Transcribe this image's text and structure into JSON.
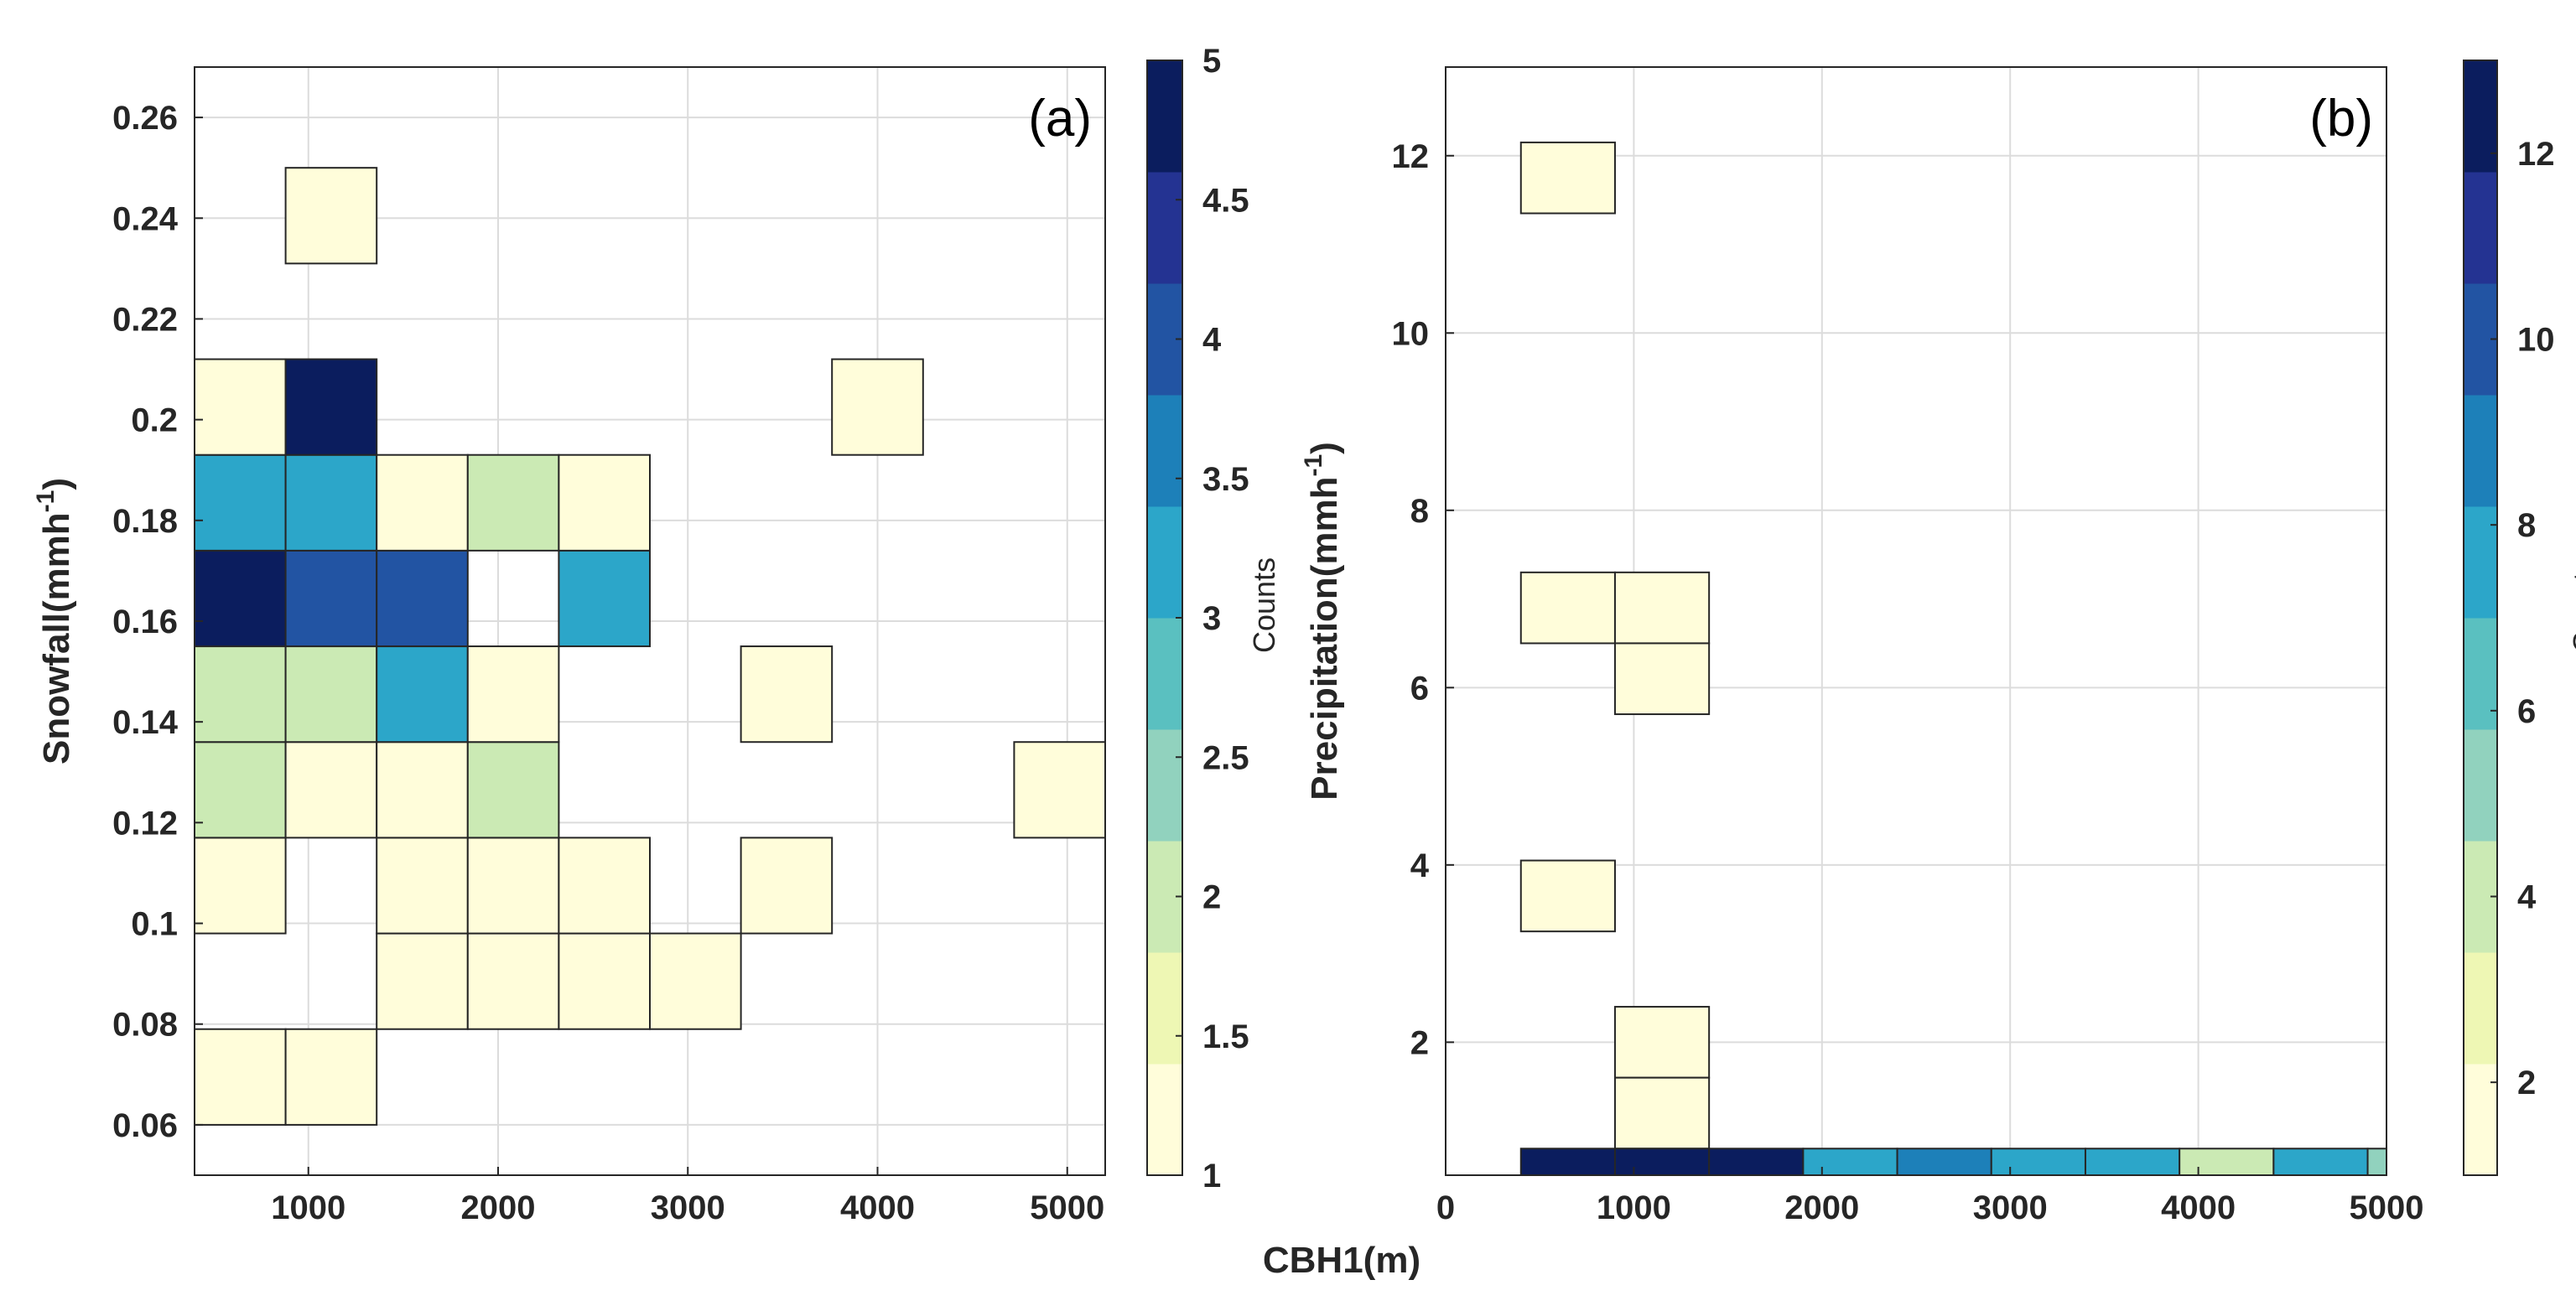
{
  "colormaps": {
    "a": [
      "#FFFDDA",
      "#EEF7B4",
      "#CBEAB4",
      "#91D2BE",
      "#5AC0C0",
      "#2CA6C9",
      "#1D80B9",
      "#2254A3",
      "#243392",
      "#0B1D5E"
    ],
    "b": [
      "#FFFDDA",
      "#EEF7B4",
      "#CBEAB4",
      "#91D2BE",
      "#5AC0C0",
      "#2CA6C9",
      "#1D80B9",
      "#2254A3",
      "#243392",
      "#0B1D5E"
    ]
  },
  "chart_data": [
    {
      "type": "heatmap",
      "panel_label": "(a)",
      "xlabel": "",
      "ylabel": "Snowfall(mmh-1)",
      "ylabel_parts": {
        "main": "Snowfall(mmh",
        "sup": "-1",
        "close": ")"
      },
      "xlim": [
        400,
        5200
      ],
      "ylim": [
        0.05,
        0.27
      ],
      "xticks": [
        1000,
        2000,
        3000,
        4000,
        5000
      ],
      "xtick_labels": [
        "1000",
        "2000",
        "3000",
        "4000",
        "5000"
      ],
      "yticks": [
        0.06,
        0.08,
        0.1,
        0.12,
        0.14,
        0.16,
        0.18,
        0.2,
        0.22,
        0.24,
        0.26
      ],
      "ytick_labels": [
        "0.06",
        "0.08",
        "0.1",
        "0.12",
        "0.14",
        "0.16",
        "0.18",
        "0.2",
        "0.22",
        "0.24",
        "0.26"
      ],
      "grid": true,
      "bin_width_x": 480,
      "bin_width_y": 0.019,
      "cells": [
        {
          "x": 640,
          "y": 0.0695,
          "count": 1
        },
        {
          "x": 1120,
          "y": 0.0695,
          "count": 1
        },
        {
          "x": 1600,
          "y": 0.0885,
          "count": 1
        },
        {
          "x": 2080,
          "y": 0.0885,
          "count": 1
        },
        {
          "x": 2560,
          "y": 0.0885,
          "count": 1
        },
        {
          "x": 3040,
          "y": 0.0885,
          "count": 1
        },
        {
          "x": 640,
          "y": 0.1075,
          "count": 1
        },
        {
          "x": 1600,
          "y": 0.1075,
          "count": 1
        },
        {
          "x": 2080,
          "y": 0.1075,
          "count": 1
        },
        {
          "x": 2560,
          "y": 0.1075,
          "count": 1
        },
        {
          "x": 3520,
          "y": 0.1075,
          "count": 1
        },
        {
          "x": 640,
          "y": 0.1265,
          "count": 2
        },
        {
          "x": 1120,
          "y": 0.1265,
          "count": 1
        },
        {
          "x": 1600,
          "y": 0.1265,
          "count": 1
        },
        {
          "x": 2080,
          "y": 0.1265,
          "count": 2
        },
        {
          "x": 4960,
          "y": 0.1265,
          "count": 1
        },
        {
          "x": 640,
          "y": 0.1455,
          "count": 2
        },
        {
          "x": 1120,
          "y": 0.1455,
          "count": 2
        },
        {
          "x": 1600,
          "y": 0.1455,
          "count": 3
        },
        {
          "x": 2080,
          "y": 0.1455,
          "count": 1
        },
        {
          "x": 3520,
          "y": 0.1455,
          "count": 1
        },
        {
          "x": 640,
          "y": 0.1645,
          "count": 5
        },
        {
          "x": 1120,
          "y": 0.1645,
          "count": 4
        },
        {
          "x": 1600,
          "y": 0.1645,
          "count": 4
        },
        {
          "x": 2560,
          "y": 0.1645,
          "count": 3
        },
        {
          "x": 640,
          "y": 0.1835,
          "count": 3
        },
        {
          "x": 1120,
          "y": 0.1835,
          "count": 3
        },
        {
          "x": 1600,
          "y": 0.1835,
          "count": 1
        },
        {
          "x": 2080,
          "y": 0.1835,
          "count": 2
        },
        {
          "x": 2560,
          "y": 0.1835,
          "count": 1
        },
        {
          "x": 640,
          "y": 0.2025,
          "count": 1
        },
        {
          "x": 1120,
          "y": 0.2025,
          "count": 5
        },
        {
          "x": 4000,
          "y": 0.2025,
          "count": 1
        },
        {
          "x": 1120,
          "y": 0.2405,
          "count": 1
        }
      ],
      "colorbar": {
        "label": "Counts",
        "min": 1,
        "max": 5,
        "ticks": [
          1,
          1.5,
          2,
          2.5,
          3,
          3.5,
          4,
          4.5,
          5
        ],
        "tick_labels": [
          "1",
          "1.5",
          "2",
          "2.5",
          "3",
          "3.5",
          "4",
          "4.5",
          "5"
        ]
      }
    },
    {
      "type": "heatmap",
      "panel_label": "(b)",
      "xlabel": "",
      "ylabel": "Precipitation(mmh-1)",
      "ylabel_parts": {
        "main": "Precipitation(mmh",
        "sup": "-1",
        "close": ")"
      },
      "xlim": [
        0,
        5000
      ],
      "ylim": [
        0.5,
        13
      ],
      "xticks": [
        0,
        1000,
        2000,
        3000,
        4000,
        5000
      ],
      "xtick_labels": [
        "0",
        "1000",
        "2000",
        "3000",
        "4000",
        "5000"
      ],
      "yticks": [
        2,
        4,
        6,
        8,
        10,
        12
      ],
      "ytick_labels": [
        "2",
        "4",
        "6",
        "8",
        "10",
        "12"
      ],
      "grid": true,
      "bin_width_x": 500,
      "bin_width_y": 0.8,
      "cells": [
        {
          "x": 650,
          "y": 11.75,
          "count": 1
        },
        {
          "x": 650,
          "y": 6.9,
          "count": 1
        },
        {
          "x": 1150,
          "y": 6.9,
          "count": 1
        },
        {
          "x": 1150,
          "y": 6.1,
          "count": 1
        },
        {
          "x": 650,
          "y": 3.65,
          "count": 1
        },
        {
          "x": 1150,
          "y": 2.0,
          "count": 1
        },
        {
          "x": 1150,
          "y": 1.2,
          "count": 2
        },
        {
          "x": 650,
          "y": 0.65,
          "count": 13,
          "height": 0.3
        },
        {
          "x": 1150,
          "y": 0.65,
          "count": 13,
          "height": 0.3
        },
        {
          "x": 1650,
          "y": 0.65,
          "count": 13,
          "height": 0.3
        },
        {
          "x": 2150,
          "y": 0.65,
          "count": 8,
          "height": 0.3
        },
        {
          "x": 2650,
          "y": 0.65,
          "count": 9,
          "height": 0.3
        },
        {
          "x": 3150,
          "y": 0.65,
          "count": 8,
          "height": 0.3
        },
        {
          "x": 3650,
          "y": 0.65,
          "count": 8,
          "height": 0.3
        },
        {
          "x": 4150,
          "y": 4,
          "count": 4,
          "height": 0.3,
          "y_override": 0.65
        },
        {
          "x": 4650,
          "y": 0.65,
          "count": 8,
          "height": 0.3
        },
        {
          "x": 4950,
          "y": 0.65,
          "count": 5,
          "height": 0.3,
          "width": 100
        }
      ],
      "colorbar": {
        "label": "Counts",
        "min": 1,
        "max": 13,
        "ticks": [
          2,
          4,
          6,
          8,
          10,
          12
        ],
        "tick_labels": [
          "2",
          "4",
          "6",
          "8",
          "10",
          "12"
        ]
      }
    }
  ],
  "shared_xlabel": "CBH1(m)"
}
